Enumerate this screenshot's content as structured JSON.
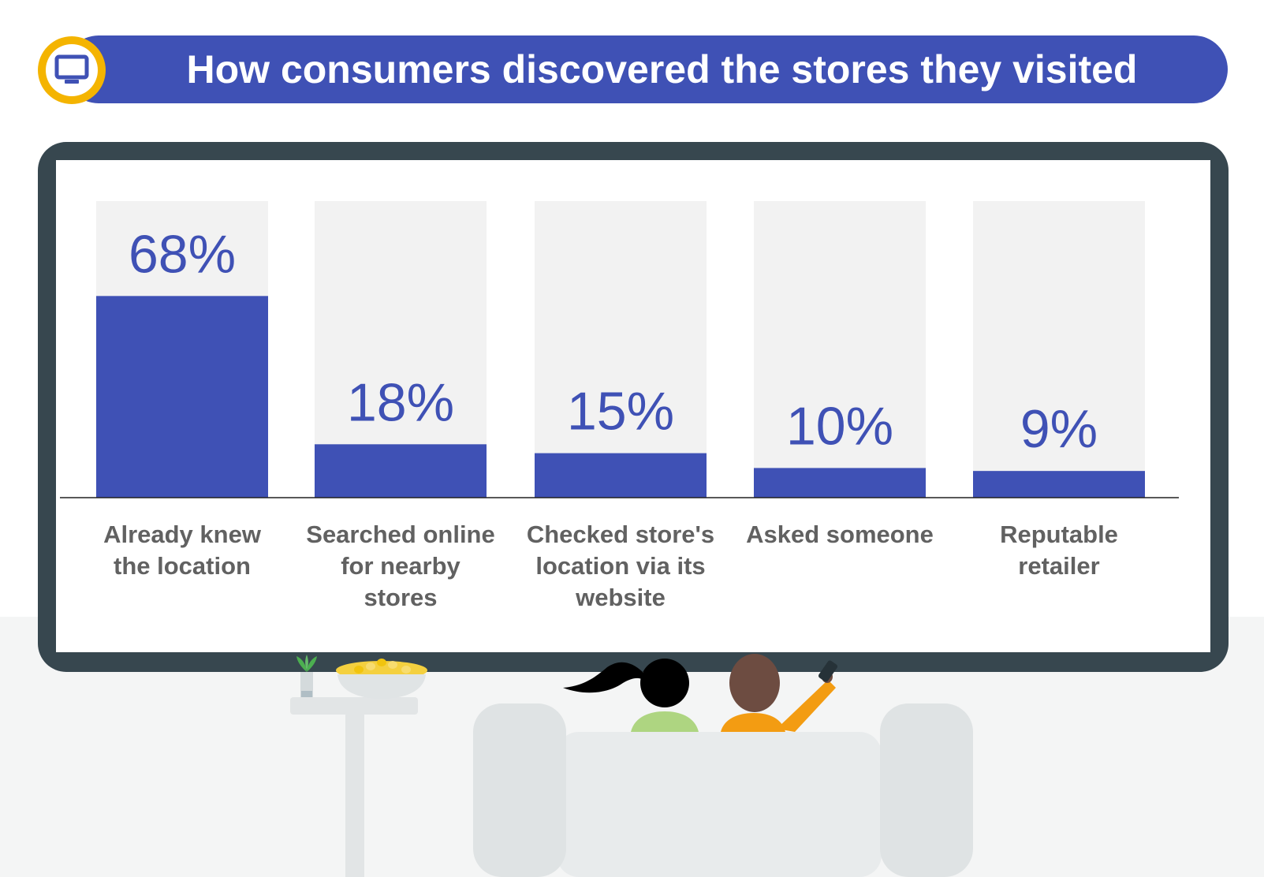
{
  "title": "How consumers discovered the stores they visited",
  "icons": {
    "badge": "tv-icon"
  },
  "colors": {
    "banner": "#3f51b5",
    "bar": "#3f51b5",
    "bar_track": "#f2f2f2",
    "value_text": "#3f51b5",
    "label_text": "#616161",
    "tv_frame": "#37474f",
    "badge_ring": "#f4b400"
  },
  "chart_data": {
    "type": "bar",
    "categories": [
      "Already knew the location",
      "Searched online for nearby stores",
      "Checked store's location via its website",
      "Asked someone",
      "Reputable retailer"
    ],
    "values": [
      68,
      18,
      15,
      10,
      9
    ],
    "value_labels": [
      "68%",
      "18%",
      "15%",
      "10%",
      "9%"
    ],
    "unit": "%",
    "ylim": [
      0,
      100
    ],
    "grid": false,
    "legend": "none"
  }
}
